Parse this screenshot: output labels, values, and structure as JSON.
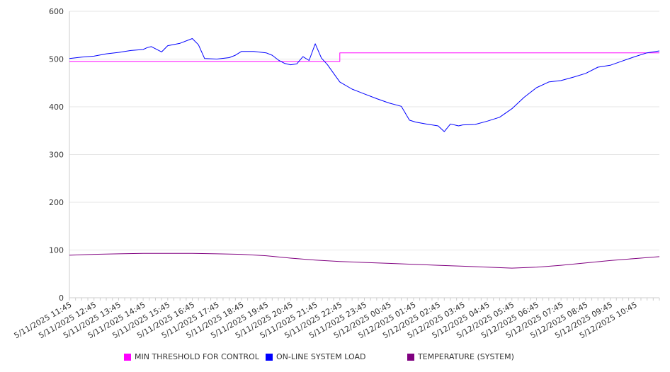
{
  "chart_data": {
    "type": "line",
    "title": "",
    "xlabel": "",
    "ylabel": "",
    "ylim": [
      0,
      600
    ],
    "y_ticks": [
      0,
      100,
      200,
      300,
      400,
      500,
      600
    ],
    "grid": true,
    "legend_placement": "bottom",
    "x_tick_labels": [
      "5/11/2025 11:45",
      "5/11/2025 12:45",
      "5/11/2025 13:45",
      "5/11/2025 14:45",
      "5/11/2025 15:45",
      "5/11/2025 16:45",
      "5/11/2025 17:45",
      "5/11/2025 18:45",
      "5/11/2025 19:45",
      "5/11/2025 20:45",
      "5/11/2025 21:45",
      "5/11/2025 22:45",
      "5/11/2025 23:45",
      "5/12/2025 00:45",
      "5/12/2025 01:45",
      "5/12/2025 02:45",
      "5/12/2025 03:45",
      "5/12/2025 04:45",
      "5/12/2025 05:45",
      "5/12/2025 06:45",
      "5/12/2025 07:45",
      "5/12/2025 08:45",
      "5/12/2025 09:45",
      "5/12/2025 10:45"
    ],
    "x_range": [
      "5/11/2025 11:45",
      "5/12/2025 11:45"
    ],
    "series": [
      {
        "name": "MIN THRESHOLD FOR CONTROL",
        "color": "#ff00ff",
        "x": [
          "5/11/2025 11:45",
          "5/11/2025 22:45",
          "5/11/2025 22:45",
          "5/12/2025 11:45"
        ],
        "values": [
          495,
          495,
          513,
          513
        ]
      },
      {
        "name": "ON-LINE SYSTEM LOAD",
        "color": "#0000ff",
        "x": [
          "5/11/2025 11:45",
          "5/11/2025 12:15",
          "5/11/2025 12:45",
          "5/11/2025 13:15",
          "5/11/2025 13:45",
          "5/11/2025 14:15",
          "5/11/2025 14:45",
          "5/11/2025 14:55",
          "5/11/2025 15:05",
          "5/11/2025 15:30",
          "5/11/2025 15:45",
          "5/11/2025 16:15",
          "5/11/2025 16:45",
          "5/11/2025 17:00",
          "5/11/2025 17:15",
          "5/11/2025 17:45",
          "5/11/2025 18:15",
          "5/11/2025 18:30",
          "5/11/2025 18:45",
          "5/11/2025 19:15",
          "5/11/2025 19:45",
          "5/11/2025 20:00",
          "5/11/2025 20:15",
          "5/11/2025 20:30",
          "5/11/2025 20:45",
          "5/11/2025 21:00",
          "5/11/2025 21:15",
          "5/11/2025 21:30",
          "5/11/2025 21:45",
          "5/11/2025 22:00",
          "5/11/2025 22:15",
          "5/11/2025 22:30",
          "5/11/2025 22:45",
          "5/11/2025 23:15",
          "5/11/2025 23:45",
          "5/12/2025 00:15",
          "5/12/2025 00:45",
          "5/12/2025 01:15",
          "5/12/2025 01:35",
          "5/12/2025 01:50",
          "5/12/2025 02:15",
          "5/12/2025 02:45",
          "5/12/2025 03:00",
          "5/12/2025 03:15",
          "5/12/2025 03:35",
          "5/12/2025 03:45",
          "5/12/2025 04:15",
          "5/12/2025 04:45",
          "5/12/2025 05:15",
          "5/12/2025 05:45",
          "5/12/2025 06:15",
          "5/12/2025 06:45",
          "5/12/2025 07:15",
          "5/12/2025 07:45",
          "5/12/2025 08:15",
          "5/12/2025 08:45",
          "5/12/2025 09:15",
          "5/12/2025 09:45",
          "5/12/2025 10:15",
          "5/12/2025 10:45",
          "5/12/2025 11:15",
          "5/12/2025 11:45"
        ],
        "values": [
          501,
          504,
          506,
          511,
          514,
          518,
          520,
          524,
          526,
          515,
          528,
          533,
          543,
          530,
          501,
          500,
          503,
          508,
          516,
          516,
          513,
          508,
          498,
          491,
          488,
          490,
          505,
          497,
          532,
          502,
          488,
          470,
          452,
          437,
          427,
          417,
          408,
          401,
          372,
          368,
          364,
          360,
          348,
          364,
          360,
          362,
          363,
          370,
          378,
          396,
          420,
          440,
          452,
          455,
          462,
          470,
          483,
          487,
          496,
          505,
          513,
          517
        ]
      },
      {
        "name": "TEMPERATURE (SYSTEM)",
        "color": "#800080",
        "x": [
          "5/11/2025 11:45",
          "5/11/2025 12:45",
          "5/11/2025 13:45",
          "5/11/2025 14:45",
          "5/11/2025 15:45",
          "5/11/2025 16:45",
          "5/11/2025 17:45",
          "5/11/2025 18:45",
          "5/11/2025 19:45",
          "5/11/2025 20:45",
          "5/11/2025 21:45",
          "5/11/2025 22:45",
          "5/11/2025 23:45",
          "5/12/2025 00:45",
          "5/12/2025 01:45",
          "5/12/2025 02:45",
          "5/12/2025 03:45",
          "5/12/2025 04:45",
          "5/12/2025 05:45",
          "5/12/2025 06:45",
          "5/12/2025 07:45",
          "5/12/2025 08:45",
          "5/12/2025 09:45",
          "5/12/2025 10:45",
          "5/12/2025 11:45"
        ],
        "values": [
          89,
          91,
          92,
          93,
          93,
          93,
          92,
          91,
          88,
          83,
          79,
          76,
          74,
          72,
          70,
          68,
          66,
          64,
          62,
          64,
          68,
          73,
          78,
          82,
          86
        ]
      }
    ]
  }
}
